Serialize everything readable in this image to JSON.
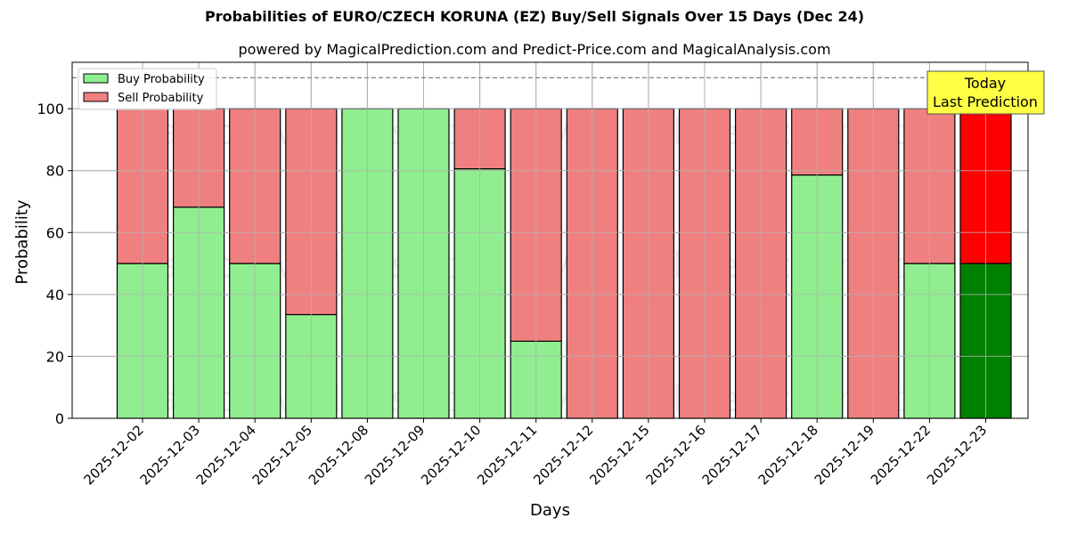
{
  "header": {
    "title": "Probabilities of EURO/CZECH KORUNA (EZ) Buy/Sell Signals Over 15 Days (Dec 24)",
    "subtitle": "powered by MagicalPrediction.com and Predict-Price.com and MagicalAnalysis.com"
  },
  "axes": {
    "xlabel": "Days",
    "ylabel": "Probability",
    "yticks": [
      "0",
      "20",
      "40",
      "60",
      "80",
      "100"
    ]
  },
  "legend": {
    "items": [
      {
        "label": "Buy Probability",
        "color": "#90ee90"
      },
      {
        "label": "Sell Probability",
        "color": "#f08080"
      }
    ]
  },
  "annotation": {
    "line1": "Today",
    "line2": "Last Prediction",
    "bg": "#ffff44"
  },
  "watermarks": [
    "MagicalAnalysis.com",
    "MagicalPrediction.com"
  ],
  "colors": {
    "buy": "#90ee90",
    "sell": "#f08080",
    "buy_last": "#008000",
    "sell_last": "#ff0000"
  },
  "chart_data": {
    "type": "bar",
    "stacked": true,
    "title": "Probabilities of EURO/CZECH KORUNA (EZ) Buy/Sell Signals Over 15 Days (Dec 24)",
    "subtitle": "powered by MagicalPrediction.com and Predict-Price.com and MagicalAnalysis.com",
    "xlabel": "Days",
    "ylabel": "Probability",
    "ylim": [
      0,
      115
    ],
    "grid": true,
    "legend_position": "upper left",
    "reference_line": {
      "y": 110,
      "style": "dashed"
    },
    "categories": [
      "2025-12-02",
      "2025-12-03",
      "2025-12-04",
      "2025-12-05",
      "2025-12-08",
      "2025-12-09",
      "2025-12-10",
      "2025-12-11",
      "2025-12-12",
      "2025-12-15",
      "2025-12-16",
      "2025-12-17",
      "2025-12-18",
      "2025-12-19",
      "2025-12-22",
      "2025-12-23"
    ],
    "series": [
      {
        "name": "Buy Probability",
        "values": [
          50,
          68.2,
          50,
          33.5,
          100,
          100,
          80.6,
          24.9,
          0,
          0,
          0,
          0,
          78.6,
          0,
          50,
          50
        ]
      },
      {
        "name": "Sell Probability",
        "values": [
          50,
          31.8,
          50,
          66.5,
          0,
          0,
          19.4,
          75.1,
          100,
          100,
          100,
          100,
          21.4,
          100,
          50,
          50
        ]
      }
    ],
    "annotations": [
      {
        "text": "Today\nLast Prediction",
        "x": "2025-12-23"
      }
    ]
  }
}
